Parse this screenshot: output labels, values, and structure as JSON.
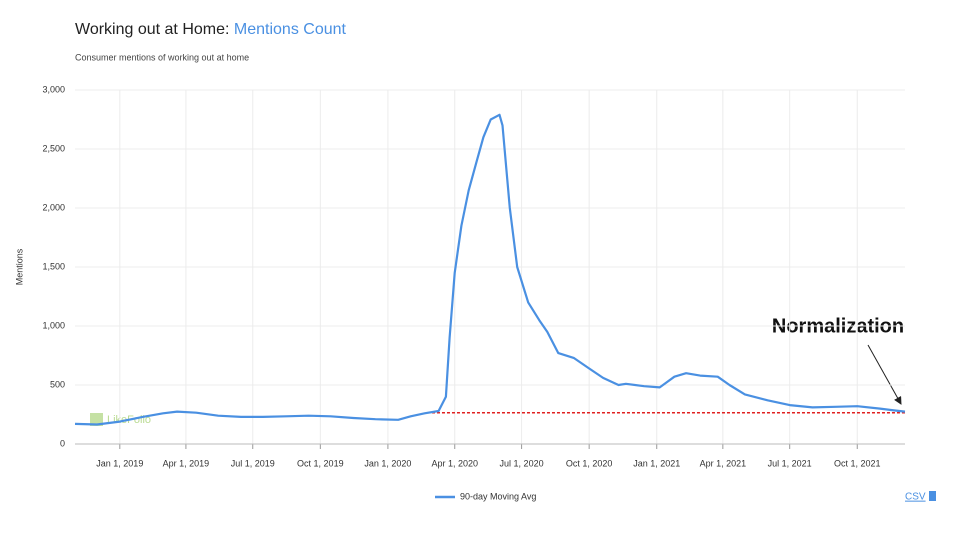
{
  "chart_data": {
    "type": "line",
    "title": "Working out at Home:",
    "title_highlight": "Mentions Count",
    "subtitle": "Consumer mentions of working out at home",
    "y_label": "Mentions",
    "watermark": "LikeFolio",
    "annotation": "Normalization",
    "export_link": "CSV",
    "grid": true,
    "legend": "bottom",
    "xlim": [
      "2018-11-01",
      "2021-12-05"
    ],
    "xticks": [
      {
        "value": "2019-01-01",
        "label": "Jan 1, 2019"
      },
      {
        "value": "2019-04-01",
        "label": "Apr 1, 2019"
      },
      {
        "value": "2019-07-01",
        "label": "Jul 1, 2019"
      },
      {
        "value": "2019-10-01",
        "label": "Oct 1, 2019"
      },
      {
        "value": "2020-01-01",
        "label": "Jan 1, 2020"
      },
      {
        "value": "2020-04-01",
        "label": "Apr 1, 2020"
      },
      {
        "value": "2020-07-01",
        "label": "Jul 1, 2020"
      },
      {
        "value": "2020-10-01",
        "label": "Oct 1, 2020"
      },
      {
        "value": "2021-01-01",
        "label": "Jan 1, 2021"
      },
      {
        "value": "2021-04-01",
        "label": "Apr 1, 2021"
      },
      {
        "value": "2021-07-01",
        "label": "Jul 1, 2021"
      },
      {
        "value": "2021-10-01",
        "label": "Oct 1, 2021"
      }
    ],
    "ylim": [
      0,
      3000
    ],
    "yticks": [
      0,
      500,
      {
        "value": 1000,
        "label": "1,000"
      },
      {
        "value": 1500,
        "label": "1,500"
      },
      {
        "value": 2000,
        "label": "2,000"
      },
      {
        "value": 2500,
        "label": "2,500"
      },
      {
        "value": 3000,
        "label": "3,000"
      }
    ],
    "reference_line": {
      "y": 265,
      "x_start": "2020-03-01",
      "x_end": "2021-12-05",
      "color": "#e02020"
    },
    "x": [
      "2018-11-01",
      "2018-12-01",
      "2019-01-01",
      "2019-02-01",
      "2019-03-01",
      "2019-03-20",
      "2019-04-15",
      "2019-05-15",
      "2019-06-15",
      "2019-07-15",
      "2019-08-15",
      "2019-09-15",
      "2019-10-15",
      "2019-11-15",
      "2019-12-15",
      "2020-01-15",
      "2020-02-01",
      "2020-02-20",
      "2020-03-10",
      "2020-03-20",
      "2020-03-25",
      "2020-04-01",
      "2020-04-10",
      "2020-04-20",
      "2020-05-01",
      "2020-05-10",
      "2020-05-20",
      "2020-06-01",
      "2020-06-05",
      "2020-06-15",
      "2020-06-25",
      "2020-07-10",
      "2020-07-25",
      "2020-08-05",
      "2020-08-20",
      "2020-09-10",
      "2020-10-01",
      "2020-10-20",
      "2020-11-10",
      "2020-11-20",
      "2020-12-15",
      "2021-01-05",
      "2021-01-25",
      "2021-02-10",
      "2021-03-01",
      "2021-03-25",
      "2021-04-10",
      "2021-05-01",
      "2021-06-01",
      "2021-07-01",
      "2021-08-01",
      "2021-09-01",
      "2021-10-01",
      "2021-11-01",
      "2021-11-20",
      "2021-12-05"
    ],
    "series": [
      {
        "name": "90-day Moving Avg",
        "color": "#4a90e2",
        "values": [
          170,
          165,
          190,
          230,
          260,
          275,
          265,
          240,
          230,
          230,
          235,
          240,
          235,
          220,
          210,
          205,
          235,
          260,
          280,
          400,
          900,
          1450,
          1850,
          2150,
          2400,
          2600,
          2750,
          2790,
          2700,
          2000,
          1500,
          1200,
          1050,
          950,
          770,
          730,
          640,
          560,
          500,
          510,
          490,
          480,
          570,
          600,
          580,
          570,
          500,
          420,
          370,
          330,
          310,
          315,
          320,
          300,
          285,
          275
        ]
      }
    ]
  }
}
